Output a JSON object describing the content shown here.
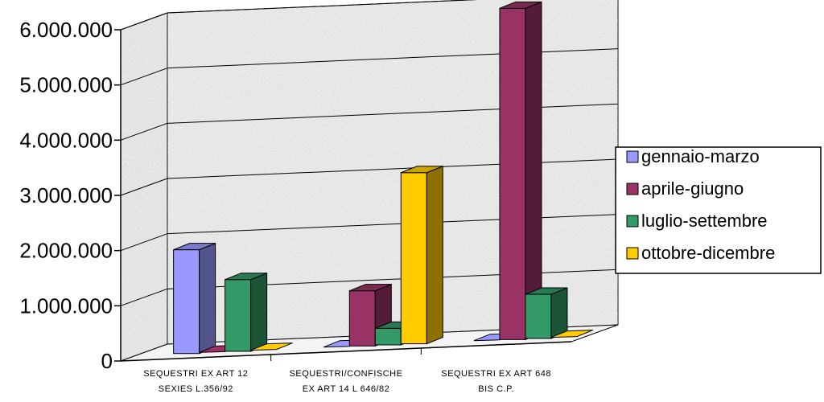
{
  "chart_data": {
    "type": "bar",
    "title": "",
    "xlabel": "",
    "ylabel": "",
    "ylim": [
      0,
      6000000
    ],
    "y_ticks": [
      0,
      1000000,
      2000000,
      3000000,
      4000000,
      5000000,
      6000000
    ],
    "y_tick_labels": [
      "0",
      "1.000.000",
      "2.000.000",
      "3.000.000",
      "4.000.000",
      "5.000.000",
      "6.000.000"
    ],
    "categories": [
      [
        "SEQUESTRI EX ART 12",
        "SEXIES L.356/92"
      ],
      [
        "SEQUESTRI/CONFISCHE",
        "EX ART 14 L 646/82"
      ],
      [
        "SEQUESTRI EX ART 648",
        "BIS C.P."
      ]
    ],
    "series": [
      {
        "name": "gennaio-marzo",
        "color": "#9999ff",
        "values": [
          1880000,
          0,
          0
        ]
      },
      {
        "name": "aprile-giugno",
        "color": "#993366",
        "values": [
          0,
          1000000,
          6000000
        ]
      },
      {
        "name": "luglio-settembre",
        "color": "#339966",
        "values": [
          1300000,
          300000,
          800000
        ]
      },
      {
        "name": "ottobre-dicembre",
        "color": "#ffcc00",
        "values": [
          0,
          3100000,
          0
        ]
      }
    ],
    "grid": true,
    "legend_position": "right",
    "three_d": true
  }
}
